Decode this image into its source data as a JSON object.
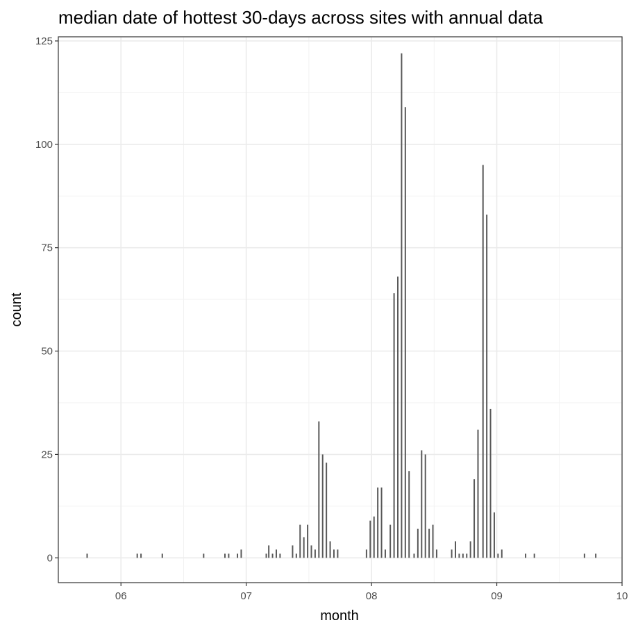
{
  "chart_data": {
    "type": "bar",
    "title": "median date of hottest 30-days across sites with annual data",
    "xlabel": "month",
    "ylabel": "count",
    "xlim": [
      5.5,
      10.0
    ],
    "ylim": [
      -6,
      126
    ],
    "x_ticks": [
      6,
      7,
      8,
      9,
      10
    ],
    "x_tick_labels": [
      "06",
      "07",
      "08",
      "09",
      "10"
    ],
    "y_ticks": [
      0,
      25,
      50,
      75,
      100,
      125
    ],
    "y_tick_labels": [
      "0",
      "25",
      "50",
      "75",
      "100",
      "125"
    ],
    "grid": true,
    "points": [
      {
        "x": 5.73,
        "y": 1
      },
      {
        "x": 6.13,
        "y": 1
      },
      {
        "x": 6.16,
        "y": 1
      },
      {
        "x": 6.33,
        "y": 1
      },
      {
        "x": 6.66,
        "y": 1
      },
      {
        "x": 6.83,
        "y": 1
      },
      {
        "x": 6.86,
        "y": 1
      },
      {
        "x": 6.93,
        "y": 1
      },
      {
        "x": 6.96,
        "y": 2
      },
      {
        "x": 7.16,
        "y": 1
      },
      {
        "x": 7.18,
        "y": 3
      },
      {
        "x": 7.21,
        "y": 1
      },
      {
        "x": 7.24,
        "y": 2
      },
      {
        "x": 7.27,
        "y": 1
      },
      {
        "x": 7.37,
        "y": 3
      },
      {
        "x": 7.4,
        "y": 1
      },
      {
        "x": 7.43,
        "y": 8
      },
      {
        "x": 7.46,
        "y": 5
      },
      {
        "x": 7.49,
        "y": 8
      },
      {
        "x": 7.52,
        "y": 3
      },
      {
        "x": 7.55,
        "y": 2
      },
      {
        "x": 7.58,
        "y": 33
      },
      {
        "x": 7.61,
        "y": 25
      },
      {
        "x": 7.64,
        "y": 23
      },
      {
        "x": 7.67,
        "y": 4
      },
      {
        "x": 7.7,
        "y": 2
      },
      {
        "x": 7.73,
        "y": 2
      },
      {
        "x": 7.96,
        "y": 2
      },
      {
        "x": 7.99,
        "y": 9
      },
      {
        "x": 8.02,
        "y": 10
      },
      {
        "x": 8.05,
        "y": 17
      },
      {
        "x": 8.08,
        "y": 17
      },
      {
        "x": 8.11,
        "y": 2
      },
      {
        "x": 8.15,
        "y": 8
      },
      {
        "x": 8.18,
        "y": 64
      },
      {
        "x": 8.21,
        "y": 68
      },
      {
        "x": 8.24,
        "y": 122
      },
      {
        "x": 8.27,
        "y": 109
      },
      {
        "x": 8.3,
        "y": 21
      },
      {
        "x": 8.34,
        "y": 1
      },
      {
        "x": 8.37,
        "y": 7
      },
      {
        "x": 8.4,
        "y": 26
      },
      {
        "x": 8.43,
        "y": 25
      },
      {
        "x": 8.46,
        "y": 7
      },
      {
        "x": 8.49,
        "y": 8
      },
      {
        "x": 8.52,
        "y": 2
      },
      {
        "x": 8.64,
        "y": 2
      },
      {
        "x": 8.67,
        "y": 4
      },
      {
        "x": 8.7,
        "y": 1
      },
      {
        "x": 8.73,
        "y": 1
      },
      {
        "x": 8.76,
        "y": 1
      },
      {
        "x": 8.79,
        "y": 4
      },
      {
        "x": 8.82,
        "y": 19
      },
      {
        "x": 8.85,
        "y": 31
      },
      {
        "x": 8.89,
        "y": 95
      },
      {
        "x": 8.92,
        "y": 83
      },
      {
        "x": 8.95,
        "y": 36
      },
      {
        "x": 8.98,
        "y": 11
      },
      {
        "x": 9.01,
        "y": 1
      },
      {
        "x": 9.04,
        "y": 2
      },
      {
        "x": 9.23,
        "y": 1
      },
      {
        "x": 9.3,
        "y": 1
      },
      {
        "x": 9.7,
        "y": 1
      },
      {
        "x": 9.79,
        "y": 1
      }
    ]
  }
}
